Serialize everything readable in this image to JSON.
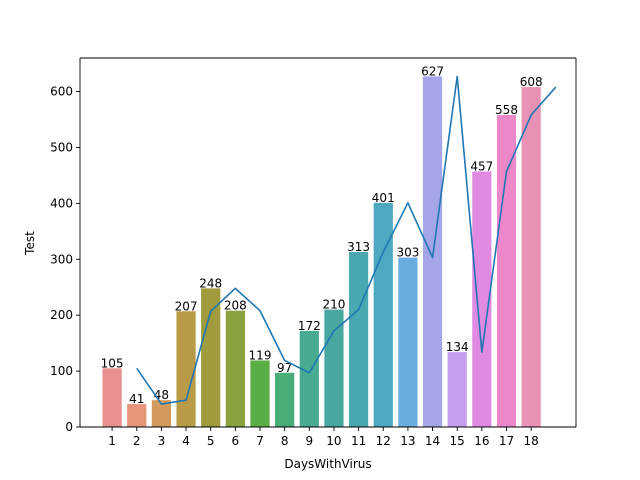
{
  "chart_data": {
    "type": "bar",
    "xlabel": "DaysWithVirus",
    "ylabel": "Test",
    "categories": [
      "1",
      "2",
      "3",
      "4",
      "5",
      "6",
      "7",
      "8",
      "9",
      "10",
      "11",
      "12",
      "13",
      "14",
      "15",
      "16",
      "17",
      "18"
    ],
    "values": [
      105,
      41,
      48,
      207,
      248,
      208,
      119,
      97,
      172,
      210,
      313,
      401,
      303,
      627,
      134,
      457,
      558,
      608
    ],
    "bar_colors": [
      "#e8908f",
      "#e59679",
      "#d29a5b",
      "#b89a47",
      "#a09c3e",
      "#8aa23d",
      "#5aac44",
      "#48ad78",
      "#49aa92",
      "#48a79f",
      "#4aa8b0",
      "#4ea8c2",
      "#69ace0",
      "#a5a6e8",
      "#c69ef0",
      "#e08ae2",
      "#ec87c9",
      "#ea92b5"
    ],
    "line": {
      "color": "#1f77b4",
      "x": [
        1,
        2,
        3,
        4,
        5,
        6,
        7,
        8,
        9,
        10,
        11,
        12,
        13,
        14,
        15,
        16,
        17,
        18
      ],
      "y": [
        105,
        41,
        48,
        207,
        248,
        208,
        119,
        97,
        172,
        210,
        313,
        401,
        303,
        627,
        134,
        457,
        558,
        608
      ]
    },
    "ylim": [
      0,
      660
    ],
    "yticks": [
      0,
      100,
      200,
      300,
      400,
      500,
      600
    ],
    "grid": false,
    "legend": "none"
  }
}
